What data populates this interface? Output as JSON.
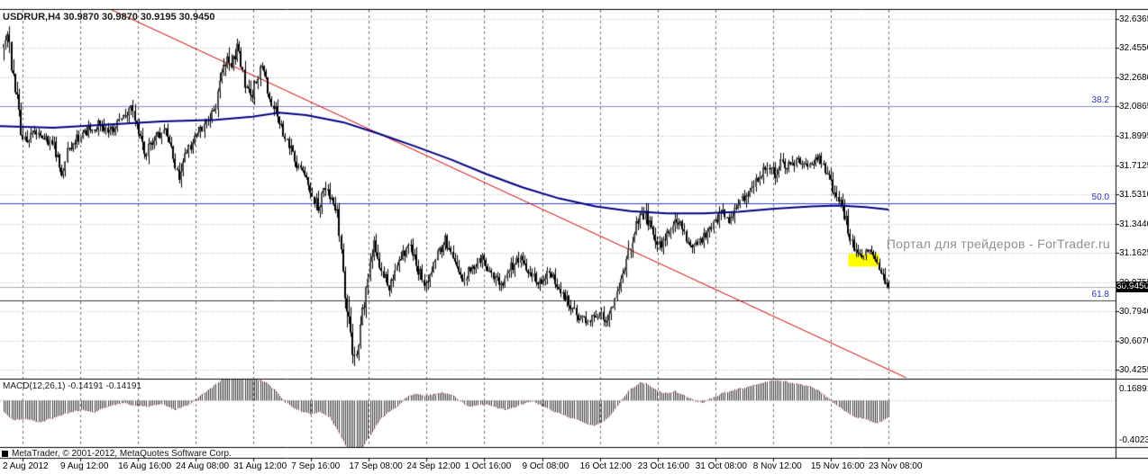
{
  "window": {
    "title": "USDRUR,H4  30.9870 30.9870 30.9195 30.9450",
    "symbol": "USDRUR",
    "period": "H4",
    "open": "30.9870",
    "high": "30.9870",
    "low": "30.9195",
    "close": "30.9450"
  },
  "watermark": "Портал для трейдеров - ForTrader.ru",
  "copyright": "MetaTrader, © 2001-2012, MetaQuotes Software Corp.",
  "indicator": {
    "label": "MACD(12,26,1) -0.14191 -0.14191",
    "name": "MACD",
    "params": "12,26,1",
    "value_1": "-0.14191",
    "value_2": "-0.14191"
  },
  "price_axis": {
    "labels": [
      "32.6365",
      "32.4550",
      "32.2680",
      "32.0865",
      "31.8995",
      "31.7125",
      "31.5310",
      "31.3440",
      "31.1625",
      "30.9755",
      "30.7940",
      "30.6070",
      "30.4255"
    ],
    "current_price": "30.9450"
  },
  "macd_axis": {
    "max": "0.16891",
    "min": "-0.4023"
  },
  "time_axis": {
    "labels": [
      "2 Aug 2012",
      "9 Aug 12:00",
      "16 Aug 16:00",
      "24 Aug 08:00",
      "31 Aug 12:00",
      "7 Sep 16:00",
      "17 Sep 08:00",
      "24 Sep 12:00",
      "1 Oct 16:00",
      "9 Oct 08:00",
      "16 Oct 12:00",
      "23 Oct 16:00",
      "31 Oct 08:00",
      "8 Nov 12:00",
      "15 Nov 16:00",
      "23 Nov 08:00"
    ]
  },
  "fibo": {
    "levels": [
      {
        "label": "38.2",
        "price": 32.0865
      },
      {
        "label": "50.0",
        "price": 31.4731
      },
      {
        "label": "61.8",
        "price": 30.8597
      }
    ]
  },
  "colors": {
    "background": "#ffffff",
    "grid": "#b4b4b4",
    "separator": "#707070",
    "bull": "#ffffff",
    "bear": "#000000",
    "candle_outline": "#000000",
    "ma": "#00007f",
    "trendline": "#d40000",
    "price_line": "#ababab",
    "price_box_bg": "#000000",
    "price_box_text": "#ffffff",
    "macd_bar": "#3c3c3c",
    "macd_signal": "#c03030",
    "highlight": "#ffff00",
    "watermark": "#909090",
    "text": "#000000"
  },
  "chart_data": [
    {
      "type": "candlestick",
      "title": "USDRUR H4",
      "y_axis": {
        "max": 32.6365,
        "min": 30.4255,
        "ticks": [
          32.6365,
          32.455,
          32.268,
          32.0865,
          31.8995,
          31.7125,
          31.531,
          31.344,
          31.1625,
          30.9755,
          30.794,
          30.607,
          30.4255
        ]
      },
      "x_axis": {
        "labels": [
          "2 Aug 2012",
          "9 Aug 12:00",
          "16 Aug 16:00",
          "24 Aug 08:00",
          "31 Aug 12:00",
          "7 Sep 16:00",
          "17 Sep 08:00",
          "24 Sep 12:00",
          "1 Oct 16:00",
          "9 Oct 08:00",
          "16 Oct 12:00",
          "23 Oct 16:00",
          "31 Oct 08:00",
          "8 Nov 12:00",
          "15 Nov 16:00",
          "23 Nov 08:00"
        ]
      },
      "bars_total": 460,
      "last_close": 30.945,
      "last_bar_ohlc": {
        "open": 30.987,
        "high": 30.987,
        "low": 30.9195,
        "close": 30.945
      },
      "price_path": [
        [
          0,
          32.42,
          0.16
        ],
        [
          2,
          32.55,
          0.14
        ],
        [
          4,
          32.33,
          0.12
        ],
        [
          7,
          32.1,
          0.16
        ],
        [
          9,
          31.92,
          0.22
        ],
        [
          12,
          31.88,
          0.08
        ],
        [
          17,
          31.93,
          0.07
        ],
        [
          22,
          31.88,
          0.07
        ],
        [
          26,
          31.84,
          0.08
        ],
        [
          30,
          31.67,
          0.1
        ],
        [
          33,
          31.8,
          0.08
        ],
        [
          38,
          31.88,
          0.07
        ],
        [
          44,
          31.94,
          0.08
        ],
        [
          50,
          31.97,
          0.08
        ],
        [
          56,
          31.93,
          0.08
        ],
        [
          61,
          32.02,
          0.09
        ],
        [
          66,
          32.08,
          0.1
        ],
        [
          69,
          31.97,
          0.09
        ],
        [
          73,
          31.79,
          0.1
        ],
        [
          78,
          31.88,
          0.08
        ],
        [
          84,
          31.93,
          0.07
        ],
        [
          88,
          31.76,
          0.09
        ],
        [
          91,
          31.64,
          0.1
        ],
        [
          95,
          31.8,
          0.08
        ],
        [
          101,
          31.92,
          0.08
        ],
        [
          106,
          31.99,
          0.09
        ],
        [
          110,
          32.1,
          0.1
        ],
        [
          113,
          32.28,
          0.12
        ],
        [
          116,
          32.42,
          0.13
        ],
        [
          118,
          32.36,
          0.11
        ],
        [
          121,
          32.45,
          0.1
        ],
        [
          124,
          32.28,
          0.1
        ],
        [
          128,
          32.12,
          0.11
        ],
        [
          131,
          32.25,
          0.09
        ],
        [
          134,
          32.33,
          0.09
        ],
        [
          137,
          32.2,
          0.09
        ],
        [
          141,
          32.05,
          0.09
        ],
        [
          144,
          31.95,
          0.08
        ],
        [
          148,
          31.85,
          0.08
        ],
        [
          152,
          31.73,
          0.09
        ],
        [
          156,
          31.65,
          0.08
        ],
        [
          160,
          31.54,
          0.09
        ],
        [
          163,
          31.44,
          0.1
        ],
        [
          166,
          31.55,
          0.08
        ],
        [
          170,
          31.52,
          0.08
        ],
        [
          173,
          31.42,
          0.1
        ],
        [
          176,
          31.05,
          0.2
        ],
        [
          179,
          30.7,
          0.18
        ],
        [
          181,
          30.55,
          0.14
        ],
        [
          183,
          30.52,
          0.12
        ],
        [
          186,
          30.78,
          0.12
        ],
        [
          189,
          31.0,
          0.12
        ],
        [
          192,
          31.2,
          0.1
        ],
        [
          196,
          31.05,
          0.09
        ],
        [
          200,
          30.95,
          0.09
        ],
        [
          205,
          31.1,
          0.09
        ],
        [
          210,
          31.22,
          0.09
        ],
        [
          215,
          31.05,
          0.09
        ],
        [
          219,
          30.97,
          0.09
        ],
        [
          224,
          31.12,
          0.09
        ],
        [
          229,
          31.24,
          0.09
        ],
        [
          234,
          31.1,
          0.08
        ],
        [
          238,
          30.98,
          0.09
        ],
        [
          243,
          31.08,
          0.08
        ],
        [
          248,
          31.12,
          0.07
        ],
        [
          253,
          31.02,
          0.08
        ],
        [
          258,
          30.96,
          0.08
        ],
        [
          263,
          31.07,
          0.08
        ],
        [
          268,
          31.14,
          0.08
        ],
        [
          273,
          31.04,
          0.08
        ],
        [
          278,
          30.98,
          0.08
        ],
        [
          283,
          31.05,
          0.07
        ],
        [
          288,
          30.95,
          0.08
        ],
        [
          293,
          30.85,
          0.09
        ],
        [
          298,
          30.76,
          0.09
        ],
        [
          303,
          30.72,
          0.09
        ],
        [
          308,
          30.78,
          0.08
        ],
        [
          313,
          30.74,
          0.08
        ],
        [
          317,
          30.85,
          0.09
        ],
        [
          321,
          31.0,
          0.1
        ],
        [
          325,
          31.2,
          0.11
        ],
        [
          329,
          31.38,
          0.1
        ],
        [
          333,
          31.4,
          0.09
        ],
        [
          337,
          31.28,
          0.09
        ],
        [
          341,
          31.2,
          0.08
        ],
        [
          345,
          31.3,
          0.08
        ],
        [
          349,
          31.38,
          0.08
        ],
        [
          353,
          31.28,
          0.08
        ],
        [
          357,
          31.18,
          0.08
        ],
        [
          362,
          31.24,
          0.08
        ],
        [
          367,
          31.33,
          0.08
        ],
        [
          372,
          31.42,
          0.09
        ],
        [
          376,
          31.36,
          0.08
        ],
        [
          381,
          31.45,
          0.08
        ],
        [
          386,
          31.55,
          0.09
        ],
        [
          391,
          31.63,
          0.09
        ],
        [
          396,
          31.7,
          0.09
        ],
        [
          400,
          31.66,
          0.08
        ],
        [
          404,
          31.74,
          0.09
        ],
        [
          408,
          31.7,
          0.08
        ],
        [
          413,
          31.74,
          0.07
        ],
        [
          418,
          31.72,
          0.07
        ],
        [
          423,
          31.76,
          0.07
        ],
        [
          427,
          31.66,
          0.08
        ],
        [
          431,
          31.54,
          0.09
        ],
        [
          435,
          31.44,
          0.09
        ],
        [
          438,
          31.32,
          0.1
        ],
        [
          441,
          31.18,
          0.09
        ],
        [
          444,
          31.15,
          0.06
        ],
        [
          448,
          31.17,
          0.06
        ],
        [
          452,
          31.14,
          0.06
        ],
        [
          455,
          31.05,
          0.08
        ],
        [
          457,
          30.99,
          0.07
        ],
        [
          459,
          30.945,
          0.06
        ]
      ],
      "ma_line": {
        "name": "moving-average",
        "color": "#00007f",
        "points": [
          [
            0,
            31.96
          ],
          [
            26,
            31.95
          ],
          [
            54,
            31.97
          ],
          [
            82,
            31.99
          ],
          [
            110,
            32.0
          ],
          [
            129,
            32.02
          ],
          [
            143,
            32.045
          ],
          [
            157,
            32.03
          ],
          [
            176,
            31.985
          ],
          [
            194,
            31.915
          ],
          [
            213,
            31.835
          ],
          [
            232,
            31.75
          ],
          [
            250,
            31.66
          ],
          [
            269,
            31.575
          ],
          [
            288,
            31.505
          ],
          [
            307,
            31.455
          ],
          [
            325,
            31.425
          ],
          [
            344,
            31.41
          ],
          [
            363,
            31.41
          ],
          [
            381,
            31.42
          ],
          [
            400,
            31.44
          ],
          [
            419,
            31.455
          ],
          [
            433,
            31.46
          ],
          [
            447,
            31.45
          ],
          [
            459,
            31.435
          ]
        ]
      },
      "trendline": {
        "color": "#d40000",
        "from": [
          45,
          32.7555
        ],
        "to": [
          468,
          30.375
        ]
      },
      "fibo_levels": [
        {
          "label": "38.2",
          "price": 32.0865,
          "color": "#8089cc"
        },
        {
          "label": "50.0",
          "price": 31.4731,
          "color": "#2740cf"
        },
        {
          "label": "61.8",
          "price": 30.8597,
          "color": "#3c3c3c"
        }
      ],
      "highlight": {
        "bar_from": 438,
        "bar_to": 454,
        "price_top": 31.155,
        "price_bottom": 31.075,
        "color": "#ffff00"
      }
    },
    {
      "type": "histogram",
      "name": "MACD(12,26,1)",
      "y_axis": {
        "max": 0.16891,
        "min": -0.4023
      },
      "current_value": -0.14191,
      "points": [
        [
          0,
          -0.1
        ],
        [
          5,
          -0.17
        ],
        [
          12,
          -0.16
        ],
        [
          19,
          -0.19
        ],
        [
          26,
          -0.15
        ],
        [
          33,
          -0.11
        ],
        [
          40,
          -0.08
        ],
        [
          47,
          -0.1
        ],
        [
          54,
          -0.05
        ],
        [
          61,
          -0.02
        ],
        [
          68,
          -0.04
        ],
        [
          75,
          -0.05
        ],
        [
          82,
          -0.03
        ],
        [
          89,
          -0.08
        ],
        [
          96,
          -0.03
        ],
        [
          103,
          0.05
        ],
        [
          110,
          0.14
        ],
        [
          117,
          0.25
        ],
        [
          122,
          0.28
        ],
        [
          127,
          0.22
        ],
        [
          132,
          0.18
        ],
        [
          136,
          0.16
        ],
        [
          141,
          0.08
        ],
        [
          145,
          0.0
        ],
        [
          150,
          -0.06
        ],
        [
          155,
          -0.1
        ],
        [
          159,
          -0.12
        ],
        [
          164,
          -0.1
        ],
        [
          169,
          -0.15
        ],
        [
          173,
          -0.26
        ],
        [
          178,
          -0.42
        ],
        [
          181,
          -0.5
        ],
        [
          185,
          -0.44
        ],
        [
          190,
          -0.3
        ],
        [
          195,
          -0.17
        ],
        [
          199,
          -0.1
        ],
        [
          204,
          -0.05
        ],
        [
          208,
          0.02
        ],
        [
          213,
          0.06
        ],
        [
          218,
          0.04
        ],
        [
          222,
          0.05
        ],
        [
          227,
          0.07
        ],
        [
          232,
          0.05
        ],
        [
          236,
          0.0
        ],
        [
          241,
          -0.05
        ],
        [
          246,
          -0.04
        ],
        [
          250,
          -0.03
        ],
        [
          255,
          -0.06
        ],
        [
          260,
          -0.08
        ],
        [
          264,
          -0.06
        ],
        [
          269,
          -0.03
        ],
        [
          274,
          0.0
        ],
        [
          278,
          -0.04
        ],
        [
          283,
          -0.08
        ],
        [
          288,
          -0.11
        ],
        [
          292,
          -0.14
        ],
        [
          297,
          -0.17
        ],
        [
          302,
          -0.2
        ],
        [
          306,
          -0.22
        ],
        [
          311,
          -0.18
        ],
        [
          316,
          -0.1
        ],
        [
          320,
          0.0
        ],
        [
          325,
          0.1
        ],
        [
          330,
          0.16
        ],
        [
          334,
          0.14
        ],
        [
          339,
          0.08
        ],
        [
          344,
          0.06
        ],
        [
          348,
          0.08
        ],
        [
          353,
          0.04
        ],
        [
          358,
          0.0
        ],
        [
          362,
          -0.02
        ],
        [
          367,
          0.02
        ],
        [
          372,
          0.06
        ],
        [
          376,
          0.08
        ],
        [
          381,
          0.1
        ],
        [
          386,
          0.12
        ],
        [
          390,
          0.14
        ],
        [
          395,
          0.16
        ],
        [
          400,
          0.18
        ],
        [
          404,
          0.17
        ],
        [
          409,
          0.15
        ],
        [
          413,
          0.14
        ],
        [
          418,
          0.12
        ],
        [
          423,
          0.08
        ],
        [
          427,
          0.02
        ],
        [
          432,
          -0.04
        ],
        [
          437,
          -0.1
        ],
        [
          441,
          -0.14
        ],
        [
          446,
          -0.16
        ],
        [
          450,
          -0.18
        ],
        [
          453,
          -0.2
        ],
        [
          456,
          -0.17
        ],
        [
          459,
          -0.142
        ]
      ]
    }
  ]
}
